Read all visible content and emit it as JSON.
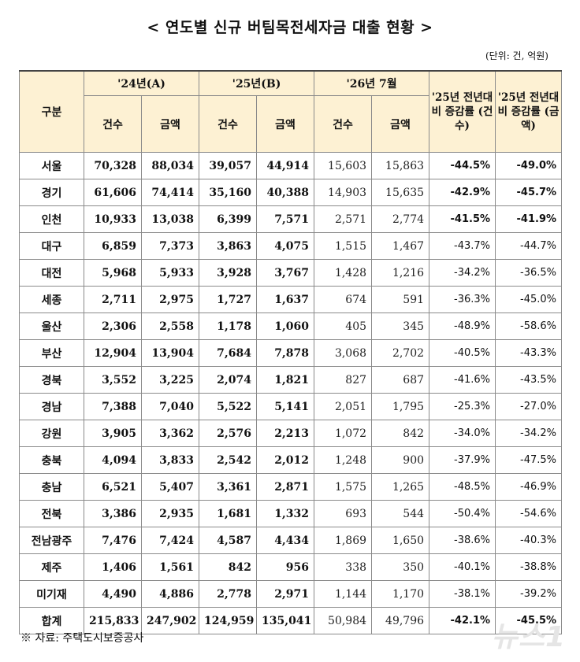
{
  "title": "< 연도별 신규 버팀목전세자금 대출 현황 >",
  "unit": "(단위: 건, 억원)",
  "header": {
    "category": "구분",
    "group_24": "'24년(A)",
    "group_25": "'25년(B)",
    "group_26": "'26년 7월",
    "yoy_count": "'25년 전년대비 증감률 (건수)",
    "yoy_amount": "'25년 전년대비 증감률 (금액)",
    "count": "건수",
    "amount": "금액"
  },
  "rows": [
    {
      "region": "서울",
      "c24": "70,328",
      "a24": "88,034",
      "c25": "39,057",
      "a25": "44,914",
      "c26": "15,603",
      "a26": "15,863",
      "pc": "-44.5%",
      "pa": "-49.0%"
    },
    {
      "region": "경기",
      "c24": "61,606",
      "a24": "74,414",
      "c25": "35,160",
      "a25": "40,388",
      "c26": "14,903",
      "a26": "15,635",
      "pc": "-42.9%",
      "pa": "-45.7%"
    },
    {
      "region": "인천",
      "c24": "10,933",
      "a24": "13,038",
      "c25": "6,399",
      "a25": "7,571",
      "c26": "2,571",
      "a26": "2,774",
      "pc": "-41.5%",
      "pa": "-41.9%"
    },
    {
      "region": "대구",
      "c24": "6,859",
      "a24": "7,373",
      "c25": "3,863",
      "a25": "4,075",
      "c26": "1,515",
      "a26": "1,467",
      "pc": "-43.7%",
      "pa": "-44.7%"
    },
    {
      "region": "대전",
      "c24": "5,968",
      "a24": "5,933",
      "c25": "3,928",
      "a25": "3,767",
      "c26": "1,428",
      "a26": "1,216",
      "pc": "-34.2%",
      "pa": "-36.5%"
    },
    {
      "region": "세종",
      "c24": "2,711",
      "a24": "2,975",
      "c25": "1,727",
      "a25": "1,637",
      "c26": "674",
      "a26": "591",
      "pc": "-36.3%",
      "pa": "-45.0%"
    },
    {
      "region": "울산",
      "c24": "2,306",
      "a24": "2,558",
      "c25": "1,178",
      "a25": "1,060",
      "c26": "405",
      "a26": "345",
      "pc": "-48.9%",
      "pa": "-58.6%"
    },
    {
      "region": "부산",
      "c24": "12,904",
      "a24": "13,904",
      "c25": "7,684",
      "a25": "7,878",
      "c26": "3,068",
      "a26": "2,702",
      "pc": "-40.5%",
      "pa": "-43.3%"
    },
    {
      "region": "경북",
      "c24": "3,552",
      "a24": "3,225",
      "c25": "2,074",
      "a25": "1,821",
      "c26": "827",
      "a26": "687",
      "pc": "-41.6%",
      "pa": "-43.5%"
    },
    {
      "region": "경남",
      "c24": "7,388",
      "a24": "7,040",
      "c25": "5,522",
      "a25": "5,141",
      "c26": "2,051",
      "a26": "1,795",
      "pc": "-25.3%",
      "pa": "-27.0%"
    },
    {
      "region": "강원",
      "c24": "3,905",
      "a24": "3,362",
      "c25": "2,576",
      "a25": "2,213",
      "c26": "1,072",
      "a26": "842",
      "pc": "-34.0%",
      "pa": "-34.2%"
    },
    {
      "region": "충북",
      "c24": "4,094",
      "a24": "3,833",
      "c25": "2,542",
      "a25": "2,012",
      "c26": "1,248",
      "a26": "900",
      "pc": "-37.9%",
      "pa": "-47.5%"
    },
    {
      "region": "충남",
      "c24": "6,521",
      "a24": "5,407",
      "c25": "3,361",
      "a25": "2,871",
      "c26": "1,575",
      "a26": "1,265",
      "pc": "-48.5%",
      "pa": "-46.9%"
    },
    {
      "region": "전북",
      "c24": "3,386",
      "a24": "2,935",
      "c25": "1,681",
      "a25": "1,332",
      "c26": "693",
      "a26": "544",
      "pc": "-50.4%",
      "pa": "-54.6%"
    },
    {
      "region": "전남광주",
      "c24": "7,476",
      "a24": "7,424",
      "c25": "4,587",
      "a25": "4,434",
      "c26": "1,869",
      "a26": "1,650",
      "pc": "-38.6%",
      "pa": "-40.3%"
    },
    {
      "region": "제주",
      "c24": "1,406",
      "a24": "1,561",
      "c25": "842",
      "a25": "956",
      "c26": "338",
      "a26": "350",
      "pc": "-40.1%",
      "pa": "-38.8%"
    },
    {
      "region": "미기재",
      "c24": "4,490",
      "a24": "4,886",
      "c25": "2,778",
      "a25": "2,971",
      "c26": "1,144",
      "a26": "1,170",
      "pc": "-38.1%",
      "pa": "-39.2%"
    },
    {
      "region": "합계",
      "c24": "215,833",
      "a24": "247,902",
      "c25": "124,959",
      "a25": "135,041",
      "c26": "50,984",
      "a26": "49,796",
      "pc": "-42.1%",
      "pa": "-45.5%"
    }
  ],
  "source": "※ 자료: 주택도시보증공사",
  "logo_text": "뉴스1"
}
